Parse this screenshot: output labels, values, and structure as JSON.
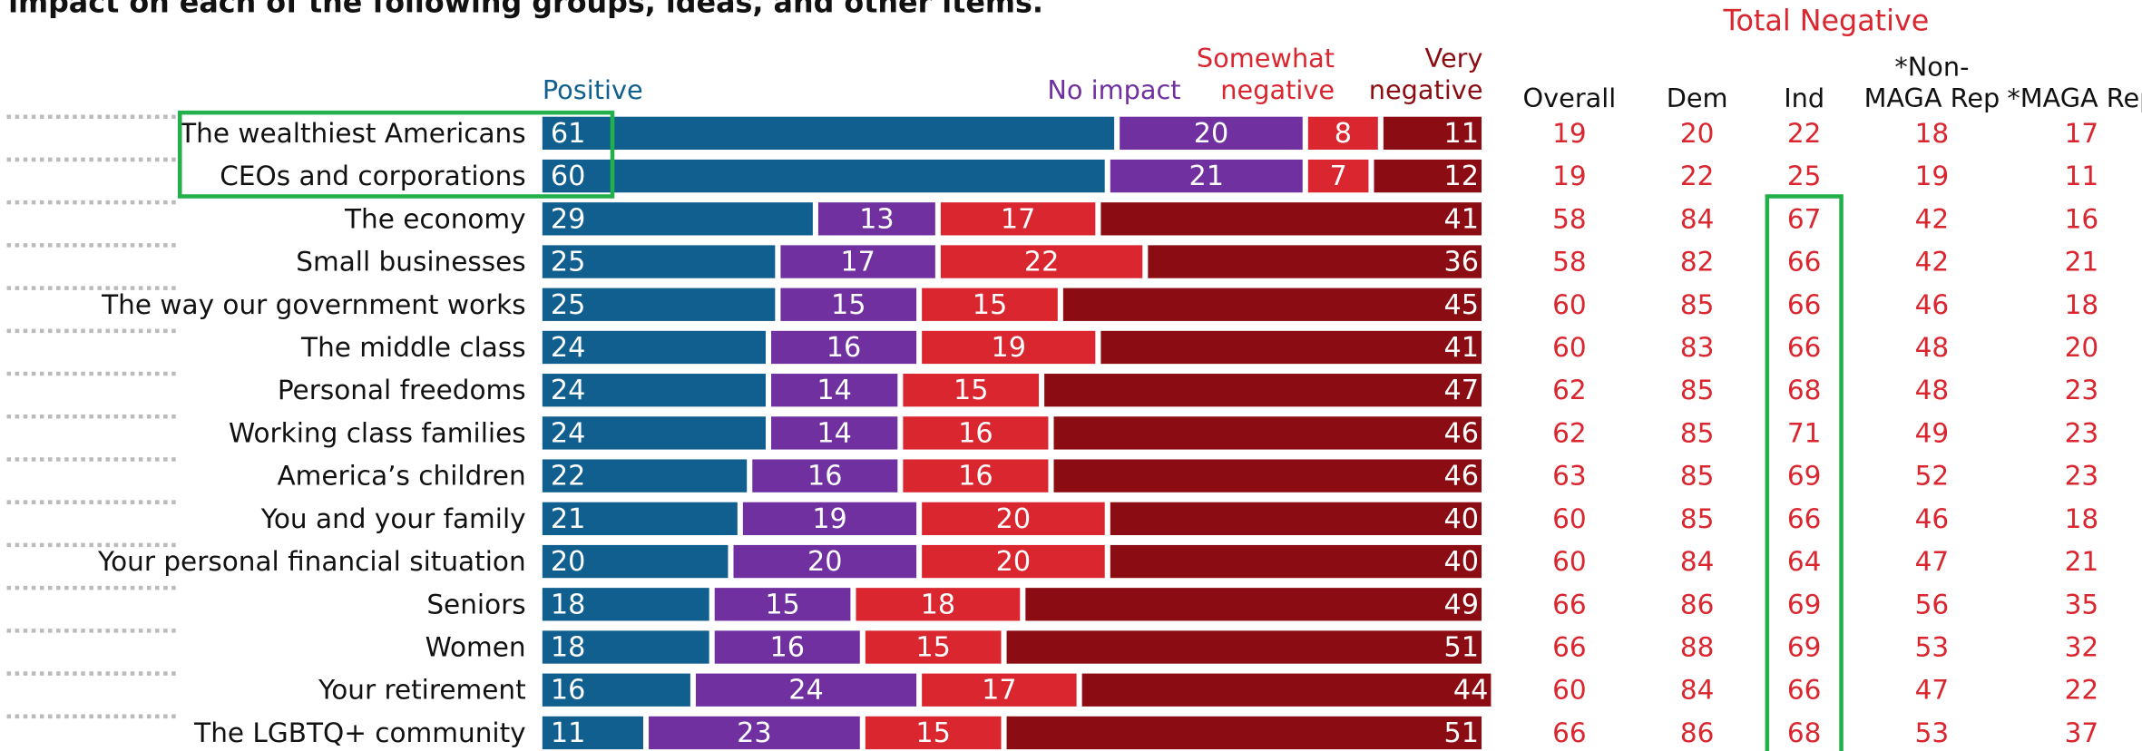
{
  "chart_data": {
    "type": "stacked-bar-horizontal",
    "title": "impact on each of the following groups, ideas, and other items.",
    "categories": [
      "The wealthiest Americans",
      "CEOs and corporations",
      "The economy",
      "Small businesses",
      "The way our government works",
      "The middle class",
      "Personal freedoms",
      "Working class families",
      "America’s children",
      "You and your family",
      "Your personal financial situation",
      "Seniors",
      "Women",
      "Your retirement",
      "The LGBTQ+ community"
    ],
    "xlim": [
      0,
      100
    ],
    "series": [
      {
        "name": "Positive",
        "color": "#105f8e",
        "values": [
          61,
          60,
          29,
          25,
          25,
          24,
          24,
          24,
          22,
          21,
          20,
          18,
          18,
          16,
          11
        ]
      },
      {
        "name": "No impact",
        "color": "#7030a0",
        "values": [
          20,
          21,
          13,
          17,
          15,
          16,
          14,
          14,
          16,
          19,
          20,
          15,
          16,
          24,
          23
        ]
      },
      {
        "name": "Somewhat negative",
        "color": "#d9262f",
        "values": [
          8,
          7,
          17,
          22,
          15,
          19,
          15,
          16,
          16,
          20,
          20,
          18,
          15,
          17,
          15
        ]
      },
      {
        "name": "Very negative",
        "color": "#8b0c12",
        "values": [
          11,
          12,
          41,
          36,
          45,
          41,
          47,
          46,
          46,
          40,
          40,
          49,
          51,
          44,
          51
        ]
      }
    ]
  },
  "table": {
    "title": "Total Negative",
    "columns": [
      "Overall",
      "Dem",
      "Ind",
      "*Non-MAGA Rep",
      "*MAGA Rep"
    ],
    "rows": [
      [
        19,
        20,
        22,
        18,
        17
      ],
      [
        19,
        22,
        25,
        19,
        11
      ],
      [
        58,
        84,
        67,
        42,
        16
      ],
      [
        58,
        82,
        66,
        42,
        21
      ],
      [
        60,
        85,
        66,
        46,
        18
      ],
      [
        60,
        83,
        66,
        48,
        20
      ],
      [
        62,
        85,
        68,
        48,
        23
      ],
      [
        62,
        85,
        71,
        49,
        23
      ],
      [
        63,
        85,
        69,
        52,
        23
      ],
      [
        60,
        85,
        66,
        46,
        18
      ],
      [
        60,
        84,
        64,
        47,
        21
      ],
      [
        66,
        86,
        69,
        56,
        35
      ],
      [
        66,
        88,
        69,
        53,
        32
      ],
      [
        60,
        84,
        66,
        47,
        22
      ],
      [
        66,
        86,
        68,
        53,
        37
      ]
    ]
  }
}
